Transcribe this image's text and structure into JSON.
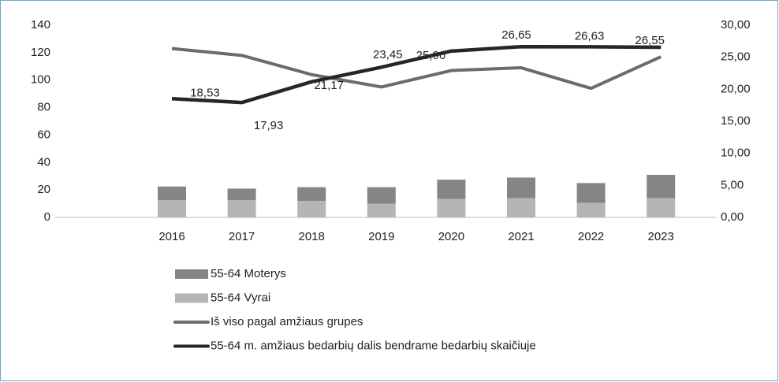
{
  "chart_data": {
    "type": "bar-line",
    "categories": [
      "2016",
      "2017",
      "2018",
      "2019",
      "2020",
      "2021",
      "2022",
      "2023"
    ],
    "series": [
      {
        "name": "55-64 Moterys",
        "type": "bar",
        "color": "#858585",
        "values": [
          10,
          8.5,
          10,
          12,
          14,
          15,
          14.5,
          17
        ]
      },
      {
        "name": "55-64 Vyrai",
        "type": "bar",
        "color": "#b5b5b5",
        "values": [
          12.5,
          12.5,
          12,
          10,
          13.5,
          14,
          10.5,
          14
        ]
      },
      {
        "name": "Iš viso pagal amžiaus grupes",
        "type": "line",
        "color": "#6b6b6b",
        "values": [
          123,
          118,
          104,
          95,
          107,
          109,
          94,
          117
        ]
      },
      {
        "name": "55-64 m. amžiaus bedarbių dalis bendrame bedarbių skaičiuje",
        "type": "line",
        "axis": "y2",
        "color": "#262626",
        "values": [
          18.53,
          17.93,
          21.17,
          23.45,
          25.96,
          26.65,
          26.63,
          26.55
        ],
        "value_labels": [
          "18,53",
          "17,93",
          "21,17",
          "23,45",
          "25,96",
          "26,65",
          "26,63",
          "26,55"
        ]
      }
    ],
    "ylim": [
      0,
      140
    ],
    "yticks": [
      0,
      20,
      40,
      60,
      80,
      100,
      120,
      140
    ],
    "y2lim": [
      0,
      30
    ],
    "y2ticks": [
      {
        "value": 0,
        "label": "0,00"
      },
      {
        "value": 5,
        "label": "5,00"
      },
      {
        "value": 10,
        "label": "10,00"
      },
      {
        "value": 15,
        "label": "15,00"
      },
      {
        "value": 20,
        "label": "20,00"
      },
      {
        "value": 25,
        "label": "25,00"
      },
      {
        "value": 30,
        "label": "30,00"
      }
    ]
  }
}
